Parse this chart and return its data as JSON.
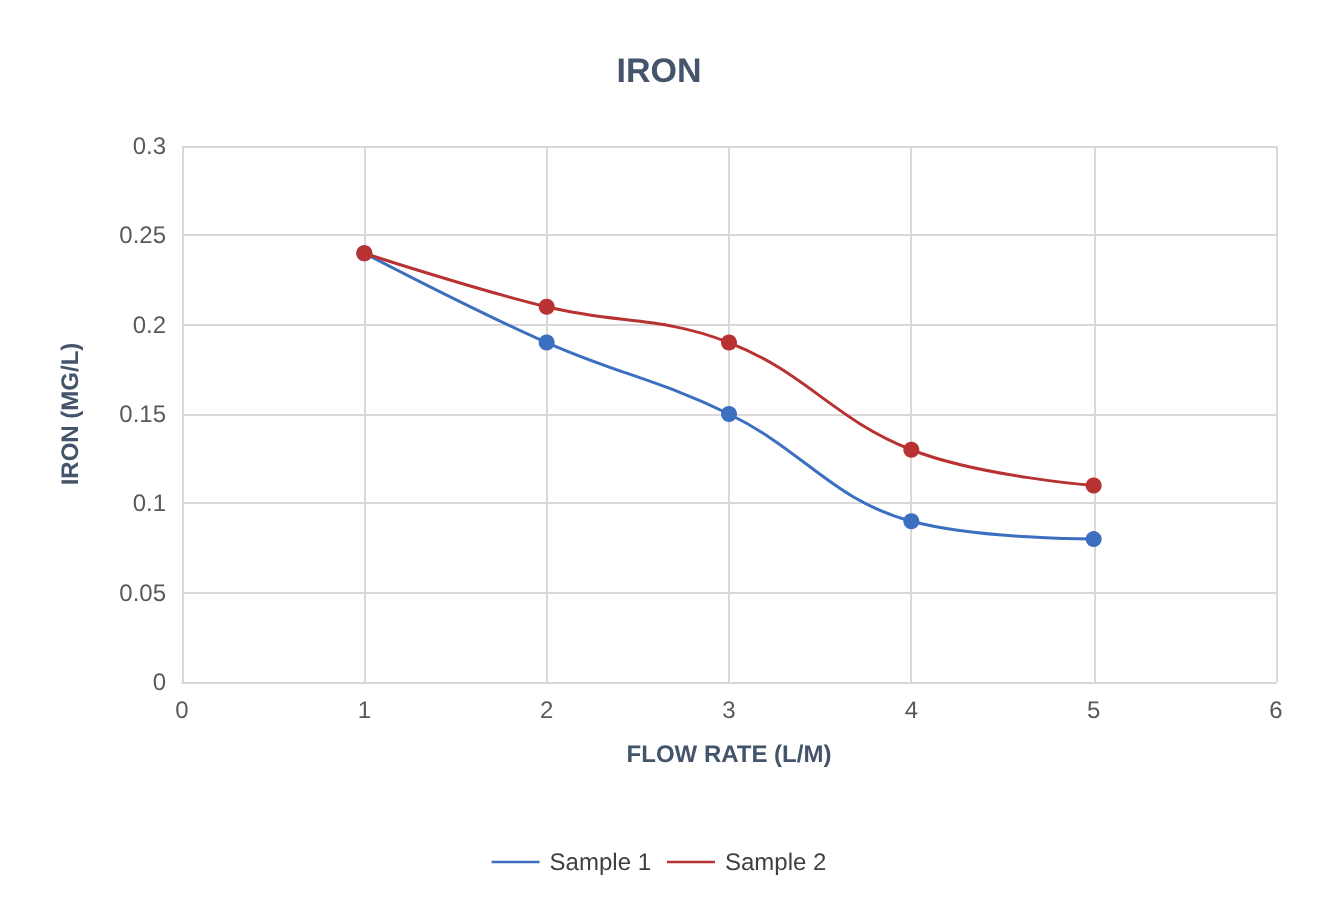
{
  "chart_data": {
    "type": "line",
    "title": "IRON",
    "xlabel": "FLOW RATE (L/M)",
    "ylabel": "IRON (MG/L)",
    "x": [
      1,
      2,
      3,
      4,
      5
    ],
    "series": [
      {
        "name": "Sample 1",
        "color": "#3d6fc0",
        "values": [
          0.24,
          0.19,
          0.15,
          0.09,
          0.08
        ]
      },
      {
        "name": "Sample 2",
        "color": "#b83232",
        "values": [
          0.24,
          0.21,
          0.19,
          0.13,
          0.11
        ]
      }
    ],
    "xlim": [
      0,
      6
    ],
    "xticks": [
      0,
      1,
      2,
      3,
      4,
      5,
      6
    ],
    "ylim": [
      0,
      0.3
    ],
    "yticks": [
      0,
      0.05,
      0.1,
      0.15,
      0.2,
      0.25,
      0.3
    ],
    "grid": true,
    "legend": "bottom",
    "marker": "circle",
    "line_style": "solid"
  }
}
